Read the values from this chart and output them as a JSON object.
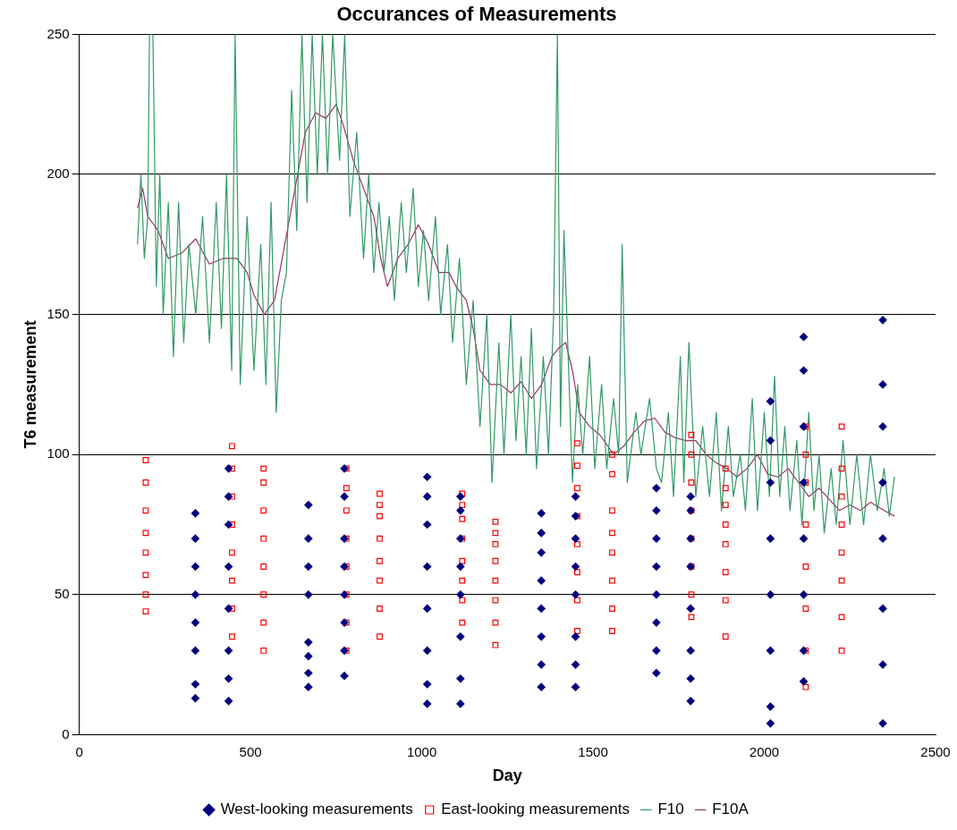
{
  "chart_data": {
    "type": "scatter",
    "title": "Occurances of Measurements",
    "xlabel": "Day",
    "ylabel": "T6 measurement",
    "xlim": [
      0,
      2500
    ],
    "xticks": [
      0,
      500,
      1000,
      1500,
      2000,
      2500
    ],
    "ylim": [
      0,
      250
    ],
    "yticks": [
      0,
      50,
      100,
      150,
      200,
      250
    ],
    "grid": "y",
    "legend": "bottom",
    "series": [
      {
        "name": "West-looking measurements",
        "type": "scatter",
        "marker": "diamond",
        "color": "#000080",
        "x": [
          339,
          339,
          339,
          339,
          339,
          339,
          339,
          339,
          436,
          436,
          436,
          436,
          436,
          436,
          436,
          436,
          669,
          669,
          669,
          669,
          669,
          669,
          669,
          669,
          774,
          774,
          774,
          774,
          774,
          774,
          774,
          774,
          1016,
          1016,
          1016,
          1016,
          1016,
          1016,
          1016,
          1016,
          1113,
          1113,
          1113,
          1113,
          1113,
          1113,
          1113,
          1113,
          1349,
          1349,
          1349,
          1349,
          1349,
          1349,
          1349,
          1349,
          1449,
          1449,
          1449,
          1449,
          1449,
          1449,
          1449,
          1449,
          1685,
          1685,
          1685,
          1685,
          1685,
          1685,
          1685,
          1685,
          1785,
          1785,
          1785,
          1785,
          1785,
          1785,
          1785,
          1785,
          2018,
          2018,
          2018,
          2018,
          2018,
          2018,
          2018,
          2018,
          2115,
          2115,
          2115,
          2115,
          2115,
          2115,
          2115,
          2115,
          2346,
          2346,
          2346,
          2346,
          2346,
          2346,
          2346,
          2346
        ],
        "values": [
          13,
          18,
          30,
          40,
          50,
          60,
          70,
          79,
          12,
          20,
          30,
          45,
          60,
          75,
          85,
          95,
          17,
          22,
          28,
          33,
          50,
          60,
          70,
          82,
          21,
          30,
          40,
          50,
          60,
          70,
          85,
          95,
          11,
          18,
          30,
          45,
          60,
          75,
          85,
          92,
          11,
          20,
          35,
          50,
          60,
          70,
          80,
          85,
          17,
          25,
          35,
          45,
          55,
          65,
          72,
          79,
          17,
          25,
          35,
          50,
          60,
          70,
          78,
          85,
          22,
          30,
          40,
          50,
          60,
          70,
          80,
          88,
          12,
          20,
          30,
          45,
          60,
          70,
          80,
          85,
          4,
          10,
          30,
          50,
          70,
          90,
          105,
          119,
          19,
          30,
          50,
          70,
          90,
          110,
          130,
          142,
          4,
          25,
          45,
          70,
          90,
          110,
          125,
          148
        ]
      },
      {
        "name": "East-looking measurements",
        "type": "scatter",
        "marker": "square",
        "color": "#ff0000",
        "x": [
          194,
          194,
          194,
          194,
          194,
          194,
          194,
          194,
          446,
          446,
          446,
          446,
          446,
          446,
          446,
          446,
          538,
          538,
          538,
          538,
          538,
          538,
          538,
          538,
          780,
          780,
          780,
          780,
          780,
          780,
          780,
          780,
          877,
          877,
          877,
          877,
          877,
          877,
          877,
          877,
          1118,
          1118,
          1118,
          1118,
          1118,
          1118,
          1118,
          1118,
          1215,
          1215,
          1215,
          1215,
          1215,
          1215,
          1215,
          1215,
          1454,
          1454,
          1454,
          1454,
          1454,
          1454,
          1454,
          1454,
          1556,
          1556,
          1556,
          1556,
          1556,
          1556,
          1556,
          1556,
          1787,
          1787,
          1787,
          1787,
          1787,
          1787,
          1787,
          1787,
          1887,
          1887,
          1887,
          1887,
          1887,
          1887,
          1887,
          1887,
          2121,
          2121,
          2121,
          2121,
          2121,
          2121,
          2121,
          2121,
          2226,
          2226,
          2226,
          2226,
          2226,
          2226,
          2226,
          2226
        ],
        "values": [
          44,
          50,
          57,
          65,
          72,
          80,
          90,
          98,
          35,
          45,
          55,
          65,
          75,
          85,
          95,
          103,
          30,
          40,
          50,
          60,
          70,
          80,
          90,
          95,
          30,
          40,
          50,
          60,
          70,
          80,
          88,
          95,
          35,
          45,
          55,
          62,
          70,
          78,
          82,
          86,
          40,
          48,
          55,
          62,
          70,
          77,
          82,
          86,
          32,
          40,
          48,
          55,
          62,
          68,
          72,
          76,
          37,
          48,
          58,
          68,
          78,
          88,
          96,
          104,
          37,
          45,
          55,
          65,
          72,
          80,
          93,
          100,
          42,
          50,
          60,
          70,
          80,
          90,
          100,
          107,
          35,
          48,
          58,
          68,
          75,
          82,
          88,
          95,
          17,
          30,
          45,
          60,
          75,
          90,
          100,
          110,
          30,
          42,
          55,
          65,
          75,
          85,
          95,
          110
        ]
      },
      {
        "name": "F10",
        "type": "line",
        "marker": "none",
        "color": "#339966",
        "x": [
          170,
          180,
          190,
          200,
          205,
          215,
          225,
          235,
          245,
          260,
          275,
          290,
          305,
          320,
          340,
          360,
          380,
          400,
          415,
          430,
          445,
          455,
          470,
          490,
          510,
          530,
          545,
          560,
          575,
          590,
          605,
          620,
          635,
          650,
          665,
          680,
          695,
          710,
          725,
          740,
          760,
          775,
          790,
          810,
          830,
          845,
          860,
          875,
          890,
          905,
          920,
          940,
          955,
          975,
          990,
          1005,
          1020,
          1040,
          1055,
          1075,
          1090,
          1110,
          1130,
          1150,
          1170,
          1190,
          1205,
          1225,
          1240,
          1260,
          1275,
          1290,
          1305,
          1320,
          1335,
          1355,
          1370,
          1385,
          1396,
          1405,
          1415,
          1440,
          1455,
          1470,
          1490,
          1505,
          1525,
          1540,
          1560,
          1575,
          1585,
          1600,
          1625,
          1640,
          1665,
          1685,
          1700,
          1720,
          1735,
          1755,
          1765,
          1780,
          1800,
          1820,
          1840,
          1860,
          1875,
          1895,
          1910,
          1930,
          1945,
          1965,
          1980,
          2000,
          2015,
          2030,
          2045,
          2060,
          2075,
          2095,
          2110,
          2130,
          2145,
          2160,
          2175,
          2195,
          2210,
          2230,
          2250,
          2270,
          2290,
          2310,
          2330,
          2350,
          2365,
          2380
        ],
        "values": [
          175,
          200,
          170,
          185,
          250,
          250,
          160,
          200,
          150,
          190,
          135,
          190,
          140,
          175,
          150,
          185,
          140,
          190,
          145,
          200,
          130,
          250,
          125,
          185,
          130,
          175,
          125,
          190,
          115,
          155,
          165,
          230,
          180,
          250,
          190,
          250,
          200,
          250,
          200,
          250,
          205,
          250,
          185,
          215,
          170,
          200,
          165,
          190,
          165,
          185,
          155,
          190,
          165,
          195,
          160,
          180,
          155,
          185,
          150,
          175,
          140,
          170,
          125,
          155,
          110,
          150,
          90,
          140,
          100,
          150,
          105,
          135,
          100,
          145,
          95,
          135,
          100,
          150,
          250,
          110,
          180,
          90,
          125,
          100,
          135,
          95,
          125,
          95,
          120,
          100,
          175,
          90,
          115,
          100,
          120,
          95,
          90,
          115,
          85,
          135,
          90,
          140,
          85,
          110,
          85,
          115,
          80,
          110,
          85,
          100,
          80,
          120,
          80,
          115,
          85,
          128,
          85,
          110,
          80,
          105,
          75,
          115,
          80,
          100,
          72,
          95,
          75,
          105,
          75,
          100,
          75,
          100,
          80,
          95,
          78,
          92
        ]
      },
      {
        "name": "F10A",
        "type": "line",
        "marker": "none",
        "color": "#993366",
        "x": [
          170,
          185,
          200,
          230,
          260,
          300,
          340,
          380,
          420,
          460,
          490,
          510,
          540,
          570,
          600,
          630,
          660,
          690,
          720,
          750,
          770,
          800,
          830,
          860,
          880,
          900,
          930,
          960,
          990,
          1020,
          1050,
          1080,
          1100,
          1130,
          1150,
          1170,
          1200,
          1230,
          1260,
          1290,
          1320,
          1350,
          1380,
          1400,
          1420,
          1440,
          1460,
          1490,
          1520,
          1560,
          1590,
          1620,
          1650,
          1680,
          1710,
          1740,
          1770,
          1800,
          1830,
          1860,
          1890,
          1920,
          1950,
          1980,
          2010,
          2040,
          2070,
          2100,
          2130,
          2160,
          2190,
          2220,
          2250,
          2280,
          2310,
          2350,
          2380
        ],
        "values": [
          188,
          195,
          185,
          180,
          170,
          172,
          177,
          168,
          170,
          170,
          165,
          157,
          150,
          155,
          175,
          195,
          215,
          222,
          220,
          225,
          218,
          205,
          195,
          185,
          170,
          160,
          170,
          175,
          182,
          175,
          165,
          165,
          160,
          155,
          145,
          130,
          125,
          125,
          122,
          126,
          120,
          125,
          135,
          138,
          140,
          130,
          115,
          110,
          107,
          100,
          103,
          108,
          112,
          113,
          108,
          106,
          105,
          105,
          100,
          97,
          95,
          92,
          95,
          100,
          93,
          92,
          95,
          90,
          85,
          88,
          84,
          80,
          82,
          80,
          83,
          80,
          78
        ]
      }
    ]
  }
}
